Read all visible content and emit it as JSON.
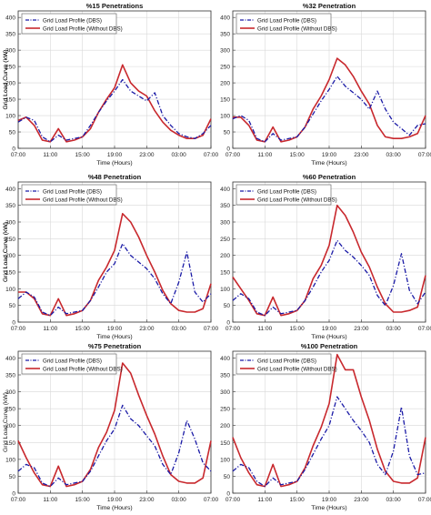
{
  "chart_data": [
    {
      "type": "line",
      "title": "%15 Penetrations",
      "xlabel": "Time (Hours)",
      "ylabel": "Grid Load Curve (kW)",
      "x_ticks": [
        "07:00",
        "11:00",
        "15:00",
        "19:00",
        "23:00",
        "03:00",
        "07:00"
      ],
      "y_ticks": [
        0,
        50,
        100,
        150,
        200,
        250,
        300,
        350,
        400
      ],
      "ylim": [
        0,
        420
      ],
      "grid": true,
      "legend_position": "top-left",
      "series": [
        {
          "name": "Grid Load Profile (DBS)",
          "color": "#1a1aa6",
          "dash": "dashdot",
          "values": [
            80,
            95,
            85,
            35,
            20,
            40,
            25,
            30,
            35,
            70,
            110,
            145,
            175,
            210,
            175,
            160,
            145,
            170,
            100,
            70,
            45,
            35,
            30,
            45,
            70
          ]
        },
        {
          "name": "Grid Load Profile (Without DBS)",
          "color": "#c8282d",
          "dash": "solid",
          "values": [
            85,
            95,
            70,
            25,
            20,
            60,
            20,
            25,
            35,
            60,
            110,
            150,
            185,
            255,
            200,
            175,
            160,
            115,
            80,
            55,
            40,
            30,
            30,
            40,
            90
          ]
        }
      ]
    },
    {
      "type": "line",
      "title": "%32 Penetration",
      "xlabel": "Time (Hours)",
      "ylabel": "Grid Load Curve (kW)",
      "x_ticks": [
        "07:00",
        "11:00",
        "15:00",
        "19:00",
        "23:00",
        "03:00",
        "07:00"
      ],
      "y_ticks": [
        0,
        50,
        100,
        150,
        200,
        250,
        300,
        350,
        400
      ],
      "ylim": [
        0,
        420
      ],
      "grid": true,
      "legend_position": "top-left",
      "series": [
        {
          "name": "Grid Load Profile (DBS)",
          "color": "#1a1aa6",
          "dash": "dashdot",
          "values": [
            90,
            100,
            85,
            30,
            20,
            45,
            25,
            30,
            35,
            65,
            105,
            145,
            180,
            220,
            190,
            170,
            150,
            120,
            175,
            120,
            80,
            60,
            40,
            70,
            75
          ]
        },
        {
          "name": "Grid Load Profile (Without DBS)",
          "color": "#c8282d",
          "dash": "solid",
          "values": [
            95,
            95,
            70,
            25,
            20,
            65,
            20,
            25,
            35,
            65,
            120,
            160,
            210,
            275,
            255,
            220,
            175,
            135,
            70,
            35,
            30,
            30,
            35,
            45,
            100
          ]
        }
      ]
    },
    {
      "type": "line",
      "title": "%48 Penetration",
      "xlabel": "Time (Hours)",
      "ylabel": "Grid Load Curve (kW)",
      "x_ticks": [
        "07:00",
        "11:00",
        "15:00",
        "19:00",
        "23:00",
        "03:00",
        "07:00"
      ],
      "y_ticks": [
        0,
        50,
        100,
        150,
        200,
        250,
        300,
        350,
        400
      ],
      "ylim": [
        0,
        420
      ],
      "grid": true,
      "legend_position": "top-left",
      "series": [
        {
          "name": "Grid Load Profile (DBS)",
          "color": "#1a1aa6",
          "dash": "dashdot",
          "values": [
            70,
            90,
            75,
            30,
            20,
            45,
            25,
            30,
            35,
            65,
            105,
            150,
            175,
            235,
            200,
            180,
            160,
            130,
            85,
            55,
            120,
            210,
            90,
            60,
            85
          ]
        },
        {
          "name": "Grid Load Profile (Without DBS)",
          "color": "#c8282d",
          "dash": "solid",
          "values": [
            90,
            90,
            70,
            25,
            20,
            70,
            20,
            25,
            35,
            65,
            125,
            165,
            215,
            325,
            300,
            255,
            200,
            150,
            95,
            55,
            35,
            30,
            30,
            40,
            115
          ]
        }
      ]
    },
    {
      "type": "line",
      "title": "%60 Penetration",
      "xlabel": "Time (Hours)",
      "ylabel": "Grid Load Curve (kW)",
      "x_ticks": [
        "07:00",
        "11:00",
        "15:00",
        "19:00",
        "23:00",
        "03:00",
        "07:00"
      ],
      "y_ticks": [
        0,
        50,
        100,
        150,
        200,
        250,
        300,
        350,
        400
      ],
      "ylim": [
        0,
        420
      ],
      "grid": true,
      "legend_position": "top-left",
      "series": [
        {
          "name": "Grid Load Profile (DBS)",
          "color": "#1a1aa6",
          "dash": "dashdot",
          "values": [
            65,
            85,
            70,
            30,
            20,
            45,
            25,
            30,
            35,
            65,
            105,
            150,
            185,
            245,
            215,
            195,
            170,
            140,
            80,
            50,
            110,
            205,
            95,
            55,
            90
          ]
        },
        {
          "name": "Grid Load Profile (Without DBS)",
          "color": "#c8282d",
          "dash": "solid",
          "values": [
            135,
            100,
            65,
            25,
            20,
            75,
            20,
            25,
            35,
            65,
            130,
            170,
            230,
            350,
            320,
            270,
            210,
            165,
            105,
            55,
            30,
            30,
            35,
            45,
            140
          ]
        }
      ]
    },
    {
      "type": "line",
      "title": "%75 Penetration",
      "xlabel": "Time (Hours)",
      "ylabel": "Grid Load Curve (kW)",
      "x_ticks": [
        "07:00",
        "11:00",
        "15:00",
        "19:00",
        "23:00",
        "03:00",
        "07:00"
      ],
      "y_ticks": [
        0,
        50,
        100,
        150,
        200,
        250,
        300,
        350,
        400
      ],
      "ylim": [
        0,
        420
      ],
      "grid": true,
      "legend_position": "top-left",
      "series": [
        {
          "name": "Grid Load Profile (DBS)",
          "color": "#1a1aa6",
          "dash": "dashdot",
          "values": [
            65,
            85,
            75,
            30,
            20,
            45,
            25,
            30,
            35,
            65,
            110,
            155,
            190,
            260,
            220,
            200,
            170,
            140,
            85,
            55,
            120,
            215,
            160,
            90,
            65
          ]
        },
        {
          "name": "Grid Load Profile (Without DBS)",
          "color": "#c8282d",
          "dash": "solid",
          "values": [
            155,
            105,
            60,
            25,
            20,
            80,
            20,
            25,
            35,
            70,
            135,
            180,
            245,
            385,
            355,
            290,
            230,
            175,
            110,
            55,
            35,
            30,
            30,
            45,
            155
          ]
        }
      ]
    },
    {
      "type": "line",
      "title": "%100 Penetration",
      "xlabel": "Time (Hours)",
      "ylabel": "",
      "x_ticks": [
        "07:00",
        "11:00",
        "15:00",
        "19:00",
        "23:00",
        "03:00",
        "07:00"
      ],
      "y_ticks": [
        0,
        50,
        100,
        150,
        200,
        250,
        300,
        350,
        400
      ],
      "ylim": [
        0,
        420
      ],
      "grid": true,
      "legend_position": "top-left",
      "series": [
        {
          "name": "Grid Load Profile (DBS)",
          "color": "#1a1aa6",
          "dash": "dashdot",
          "values": [
            65,
            85,
            75,
            35,
            20,
            45,
            25,
            30,
            35,
            70,
            115,
            160,
            200,
            285,
            250,
            215,
            185,
            150,
            85,
            55,
            125,
            255,
            110,
            55,
            60
          ]
        },
        {
          "name": "Grid Load Profile (Without DBS)",
          "color": "#c8282d",
          "dash": "solid",
          "values": [
            165,
            105,
            60,
            25,
            20,
            85,
            20,
            25,
            35,
            75,
            140,
            195,
            265,
            410,
            365,
            365,
            285,
            215,
            130,
            65,
            35,
            30,
            30,
            45,
            165
          ]
        }
      ]
    }
  ]
}
